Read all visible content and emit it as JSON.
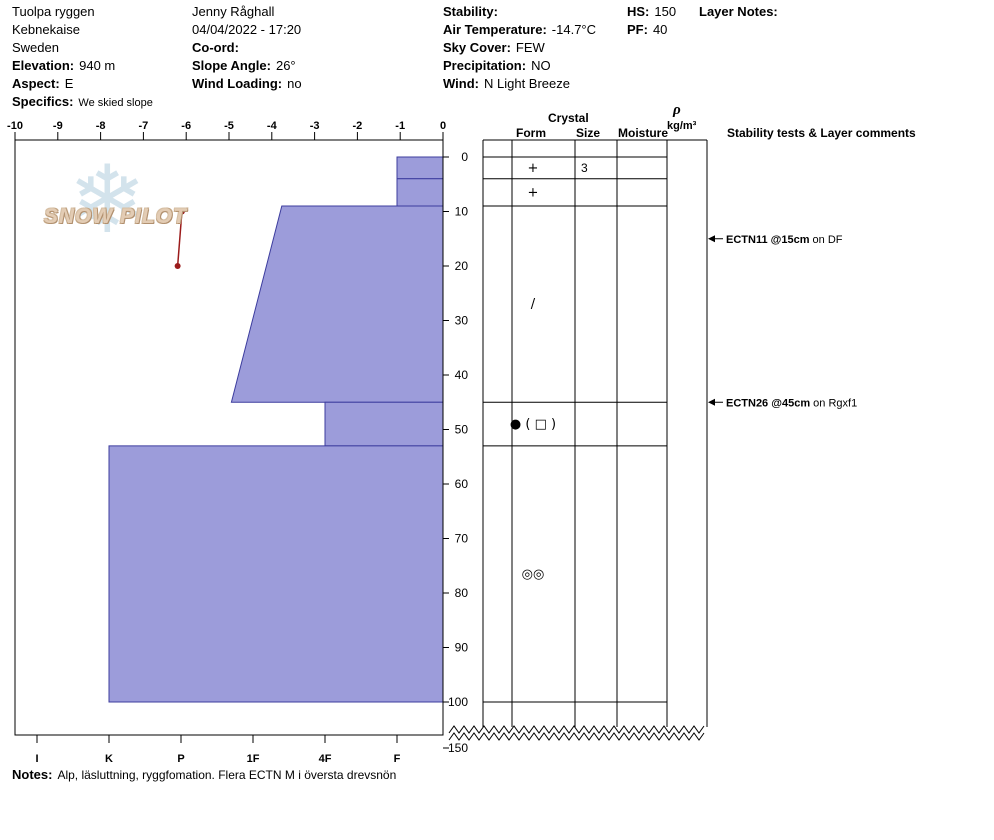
{
  "colors": {
    "layer_fill": "#9c9cda",
    "layer_stroke": "#3c3c9e",
    "temp_line": "#9b1b1b",
    "logo_flake": "#cfe0eb",
    "logo_text": "#e3ccb4"
  },
  "header": {
    "location": {
      "site": "Tuolpa ryggen",
      "range": "Kebnekaise",
      "country": "Sweden",
      "elevation_label": "Elevation:",
      "elevation_value": "940 m",
      "aspect_label": "Aspect:",
      "aspect_value": "E",
      "specifics_label": "Specifics:",
      "specifics_value": "We skied slope"
    },
    "observation": {
      "observer": "Jenny Råghall",
      "datetime": "04/04/2022 - 17:20",
      "coord_label": "Co-ord:",
      "coord_value": "",
      "slope_angle_label": "Slope Angle:",
      "slope_angle_value": "26°",
      "wind_loading_label": "Wind Loading:",
      "wind_loading_value": "no"
    },
    "conditions": {
      "stability_label": "Stability:",
      "stability_value": "",
      "air_temp_label": "Air Temperature:",
      "air_temp_value": "-14.7°C",
      "sky_label": "Sky Cover:",
      "sky_value": "FEW",
      "precip_label": "Precipitation:",
      "precip_value": "NO",
      "wind_label": "Wind:",
      "wind_value": "N Light Breeze"
    },
    "snowpack": {
      "hs_label": "HS:",
      "hs_value": "150",
      "pf_label": "PF:",
      "pf_value": "40"
    },
    "layer_notes_label": "Layer Notes:"
  },
  "column_headers": {
    "crystal": "Crystal",
    "form": "Form",
    "size": "Size",
    "moisture": "Moisture",
    "density_symbol": "ρ",
    "density_units": "kg/m³",
    "stability": "Stability tests & Layer comments"
  },
  "chart_data": {
    "type": "snow-profile",
    "title": "Snow pit hardness / temperature profile",
    "temp_axis": {
      "unit": "°C",
      "min": -10,
      "max": 0,
      "ticks": [
        -10,
        -9,
        -8,
        -7,
        -6,
        -5,
        -4,
        -3,
        -2,
        -1,
        0
      ]
    },
    "depth_axis": {
      "unit": "cm",
      "ticks": [
        0,
        10,
        20,
        30,
        40,
        50,
        60,
        70,
        80,
        90,
        100
      ],
      "break_label": 150,
      "total_depth": 150
    },
    "hardness_axis": {
      "ticks": [
        "I",
        "K",
        "P",
        "1F",
        "4F",
        "F"
      ],
      "index_scale": "1=I 2=K 3=P 4=1F 5=4F 6=F"
    },
    "layers": [
      {
        "top_cm": 0,
        "bottom_cm": 4,
        "hardness": "F",
        "hardness_index_top": 6,
        "hardness_index_bottom": 6,
        "form": "+",
        "size": "3"
      },
      {
        "top_cm": 4,
        "bottom_cm": 9,
        "hardness": "F",
        "hardness_index_top": 6,
        "hardness_index_bottom": 6,
        "form": "+",
        "size": ""
      },
      {
        "top_cm": 9,
        "bottom_cm": 45,
        "hardness": "4F-1F",
        "hardness_index_top": 4.4,
        "hardness_index_bottom": 3.7,
        "form": "/",
        "size": ""
      },
      {
        "top_cm": 45,
        "bottom_cm": 53,
        "hardness": "4F",
        "hardness_index_top": 5,
        "hardness_index_bottom": 5,
        "form": "● ( □ )",
        "size": ""
      },
      {
        "top_cm": 53,
        "bottom_cm": 100,
        "hardness": "K",
        "hardness_index_top": 2,
        "hardness_index_bottom": 2,
        "form": "◎◎",
        "size": ""
      }
    ],
    "temperature_profile": [
      {
        "depth_cm": 10,
        "temp_c": -6.1
      },
      {
        "depth_cm": 20,
        "temp_c": -6.2
      }
    ],
    "stability_tests": [
      {
        "label": "ECTN11 @15cm",
        "comment": "on DF",
        "depth_cm": 15
      },
      {
        "label": "ECTN26 @45cm",
        "comment": "on Rgxf1",
        "depth_cm": 45
      }
    ]
  },
  "logo": {
    "text": "SNOW PILOT"
  },
  "notes": {
    "label": "Notes:",
    "text": "Alp, läsluttning, ryggfomation. Flera ECTN M i översta drevsnön"
  }
}
